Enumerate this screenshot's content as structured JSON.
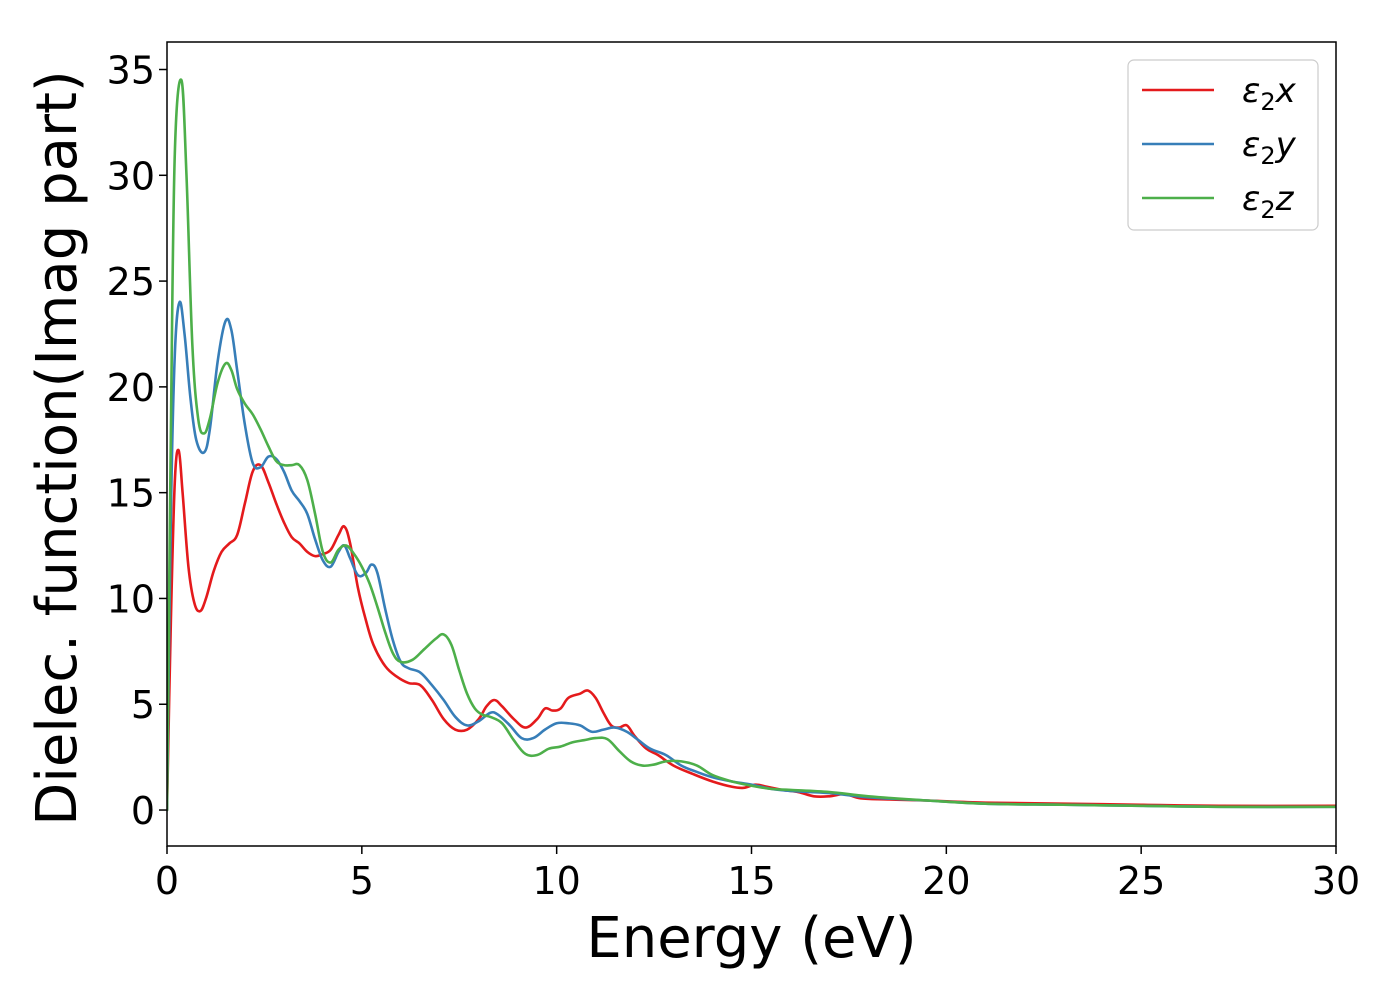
{
  "chart_data": {
    "type": "line",
    "title": "",
    "xlabel": "Energy (eV)",
    "ylabel": "Dielec. function(Imag part)",
    "xlim": [
      0,
      30
    ],
    "ylim": [
      -1.7,
      36.3
    ],
    "xticks": [
      "0",
      "5",
      "10",
      "15",
      "20",
      "25",
      "30"
    ],
    "xtick_values": [
      0,
      5,
      10,
      15,
      20,
      25,
      30
    ],
    "yticks": [
      "0",
      "5",
      "10",
      "15",
      "20",
      "25",
      "30",
      "35"
    ],
    "ytick_values": [
      0,
      5,
      10,
      15,
      20,
      25,
      30,
      35
    ],
    "grid": false,
    "legend": {
      "placement": "top-right"
    },
    "series": [
      {
        "name": "ε₂x",
        "legend_base": "ε",
        "legend_sub": "2",
        "legend_var": "x",
        "color": "#e41a1c",
        "points": [
          [
            0,
            0
          ],
          [
            0.1,
            9
          ],
          [
            0.2,
            15.5
          ],
          [
            0.3,
            17
          ],
          [
            0.4,
            15
          ],
          [
            0.55,
            11.5
          ],
          [
            0.7,
            9.8
          ],
          [
            0.85,
            9.4
          ],
          [
            1.0,
            10
          ],
          [
            1.2,
            11.3
          ],
          [
            1.4,
            12.2
          ],
          [
            1.6,
            12.6
          ],
          [
            1.8,
            13
          ],
          [
            2.0,
            14.5
          ],
          [
            2.2,
            16
          ],
          [
            2.4,
            16.3
          ],
          [
            2.6,
            15.5
          ],
          [
            2.8,
            14.5
          ],
          [
            3.0,
            13.6
          ],
          [
            3.2,
            12.9
          ],
          [
            3.4,
            12.6
          ],
          [
            3.6,
            12.2
          ],
          [
            3.8,
            12
          ],
          [
            4.0,
            12.1
          ],
          [
            4.2,
            12.3
          ],
          [
            4.4,
            13
          ],
          [
            4.55,
            13.4
          ],
          [
            4.7,
            12.6
          ],
          [
            4.9,
            10.5
          ],
          [
            5.1,
            9
          ],
          [
            5.3,
            7.8
          ],
          [
            5.6,
            6.8
          ],
          [
            5.9,
            6.3
          ],
          [
            6.2,
            6
          ],
          [
            6.5,
            5.9
          ],
          [
            6.8,
            5.2
          ],
          [
            7.1,
            4.3
          ],
          [
            7.4,
            3.8
          ],
          [
            7.7,
            3.8
          ],
          [
            8.0,
            4.3
          ],
          [
            8.2,
            4.9
          ],
          [
            8.4,
            5.2
          ],
          [
            8.6,
            4.9
          ],
          [
            8.9,
            4.3
          ],
          [
            9.2,
            3.9
          ],
          [
            9.5,
            4.3
          ],
          [
            9.7,
            4.8
          ],
          [
            9.9,
            4.7
          ],
          [
            10.1,
            4.8
          ],
          [
            10.3,
            5.3
          ],
          [
            10.6,
            5.5
          ],
          [
            10.8,
            5.65
          ],
          [
            11.0,
            5.3
          ],
          [
            11.2,
            4.6
          ],
          [
            11.4,
            4
          ],
          [
            11.6,
            3.9
          ],
          [
            11.8,
            4
          ],
          [
            12.0,
            3.5
          ],
          [
            12.3,
            2.9
          ],
          [
            12.6,
            2.6
          ],
          [
            13.0,
            2.1
          ],
          [
            13.5,
            1.7
          ],
          [
            14.0,
            1.35
          ],
          [
            14.5,
            1.1
          ],
          [
            14.8,
            1.05
          ],
          [
            15.1,
            1.2
          ],
          [
            15.4,
            1.1
          ],
          [
            15.8,
            0.95
          ],
          [
            16.2,
            0.85
          ],
          [
            16.6,
            0.65
          ],
          [
            17.0,
            0.65
          ],
          [
            17.4,
            0.75
          ],
          [
            17.8,
            0.55
          ],
          [
            18.5,
            0.5
          ],
          [
            19.5,
            0.45
          ],
          [
            21,
            0.35
          ],
          [
            23,
            0.3
          ],
          [
            25,
            0.25
          ],
          [
            27,
            0.2
          ],
          [
            30,
            0.2
          ]
        ]
      },
      {
        "name": "ε₂y",
        "legend_base": "ε",
        "legend_sub": "2",
        "legend_var": "y",
        "color": "#377eb8",
        "points": [
          [
            0,
            0
          ],
          [
            0.1,
            14
          ],
          [
            0.2,
            21.5
          ],
          [
            0.32,
            24
          ],
          [
            0.45,
            22.5
          ],
          [
            0.6,
            19.5
          ],
          [
            0.75,
            17.5
          ],
          [
            0.95,
            16.9
          ],
          [
            1.1,
            18
          ],
          [
            1.3,
            21.2
          ],
          [
            1.5,
            23.1
          ],
          [
            1.65,
            22.7
          ],
          [
            1.8,
            20.8
          ],
          [
            2.0,
            18.2
          ],
          [
            2.2,
            16.4
          ],
          [
            2.4,
            16.2
          ],
          [
            2.6,
            16.7
          ],
          [
            2.8,
            16.6
          ],
          [
            3.0,
            16
          ],
          [
            3.2,
            15.1
          ],
          [
            3.4,
            14.6
          ],
          [
            3.6,
            14
          ],
          [
            3.8,
            12.8
          ],
          [
            4.0,
            11.8
          ],
          [
            4.2,
            11.5
          ],
          [
            4.4,
            12.2
          ],
          [
            4.55,
            12.5
          ],
          [
            4.7,
            11.9
          ],
          [
            4.9,
            11.1
          ],
          [
            5.1,
            11.2
          ],
          [
            5.25,
            11.6
          ],
          [
            5.4,
            11.2
          ],
          [
            5.6,
            9.5
          ],
          [
            5.8,
            8
          ],
          [
            6.0,
            7
          ],
          [
            6.2,
            6.7
          ],
          [
            6.5,
            6.5
          ],
          [
            6.8,
            5.9
          ],
          [
            7.1,
            5.2
          ],
          [
            7.4,
            4.4
          ],
          [
            7.7,
            4
          ],
          [
            8.0,
            4.2
          ],
          [
            8.3,
            4.6
          ],
          [
            8.5,
            4.5
          ],
          [
            8.8,
            4
          ],
          [
            9.1,
            3.4
          ],
          [
            9.4,
            3.4
          ],
          [
            9.7,
            3.8
          ],
          [
            10.0,
            4.1
          ],
          [
            10.3,
            4.1
          ],
          [
            10.6,
            4
          ],
          [
            10.9,
            3.7
          ],
          [
            11.2,
            3.8
          ],
          [
            11.5,
            3.9
          ],
          [
            11.8,
            3.7
          ],
          [
            12.1,
            3.3
          ],
          [
            12.4,
            2.9
          ],
          [
            12.8,
            2.6
          ],
          [
            13.2,
            2.1
          ],
          [
            13.6,
            1.8
          ],
          [
            14.0,
            1.55
          ],
          [
            14.5,
            1.35
          ],
          [
            15.0,
            1.2
          ],
          [
            15.5,
            1.0
          ],
          [
            16.0,
            0.9
          ],
          [
            17.0,
            0.8
          ],
          [
            18.0,
            0.6
          ],
          [
            19.5,
            0.45
          ],
          [
            21,
            0.3
          ],
          [
            23,
            0.25
          ],
          [
            25,
            0.2
          ],
          [
            27,
            0.15
          ],
          [
            30,
            0.15
          ]
        ]
      },
      {
        "name": "ε₂z",
        "legend_base": "ε",
        "legend_sub": "2",
        "legend_var": "z",
        "color": "#4daf4a",
        "points": [
          [
            0,
            0
          ],
          [
            0.1,
            18
          ],
          [
            0.2,
            31
          ],
          [
            0.37,
            34.5
          ],
          [
            0.5,
            30
          ],
          [
            0.65,
            22
          ],
          [
            0.8,
            18.5
          ],
          [
            0.95,
            17.8
          ],
          [
            1.1,
            18.5
          ],
          [
            1.3,
            20.2
          ],
          [
            1.5,
            21.1
          ],
          [
            1.65,
            20.8
          ],
          [
            1.8,
            19.9
          ],
          [
            2.0,
            19.2
          ],
          [
            2.2,
            18.7
          ],
          [
            2.4,
            18
          ],
          [
            2.6,
            17.2
          ],
          [
            2.8,
            16.5
          ],
          [
            3.0,
            16.3
          ],
          [
            3.2,
            16.3
          ],
          [
            3.4,
            16.3
          ],
          [
            3.6,
            15.6
          ],
          [
            3.8,
            14
          ],
          [
            4.0,
            12.2
          ],
          [
            4.2,
            11.7
          ],
          [
            4.4,
            12.3
          ],
          [
            4.6,
            12.5
          ],
          [
            4.8,
            12.1
          ],
          [
            5.0,
            11.5
          ],
          [
            5.2,
            10.7
          ],
          [
            5.4,
            9.6
          ],
          [
            5.6,
            8.4
          ],
          [
            5.8,
            7.4
          ],
          [
            6.0,
            7
          ],
          [
            6.3,
            7.1
          ],
          [
            6.6,
            7.6
          ],
          [
            6.9,
            8.1
          ],
          [
            7.1,
            8.3
          ],
          [
            7.3,
            7.8
          ],
          [
            7.5,
            6.6
          ],
          [
            7.7,
            5.5
          ],
          [
            7.9,
            4.8
          ],
          [
            8.1,
            4.5
          ],
          [
            8.3,
            4.4
          ],
          [
            8.6,
            4.1
          ],
          [
            8.9,
            3.3
          ],
          [
            9.2,
            2.65
          ],
          [
            9.5,
            2.6
          ],
          [
            9.8,
            2.9
          ],
          [
            10.1,
            3.0
          ],
          [
            10.4,
            3.2
          ],
          [
            10.7,
            3.3
          ],
          [
            11.0,
            3.4
          ],
          [
            11.3,
            3.35
          ],
          [
            11.6,
            2.8
          ],
          [
            11.9,
            2.3
          ],
          [
            12.2,
            2.1
          ],
          [
            12.5,
            2.15
          ],
          [
            12.8,
            2.3
          ],
          [
            13.2,
            2.3
          ],
          [
            13.6,
            2.1
          ],
          [
            14.0,
            1.65
          ],
          [
            14.5,
            1.35
          ],
          [
            15.0,
            1.15
          ],
          [
            15.5,
            1.0
          ],
          [
            16.0,
            0.95
          ],
          [
            17.0,
            0.85
          ],
          [
            18.0,
            0.65
          ],
          [
            19.5,
            0.45
          ],
          [
            21,
            0.3
          ],
          [
            23,
            0.25
          ],
          [
            25,
            0.2
          ],
          [
            27,
            0.15
          ],
          [
            30,
            0.15
          ]
        ]
      }
    ]
  }
}
